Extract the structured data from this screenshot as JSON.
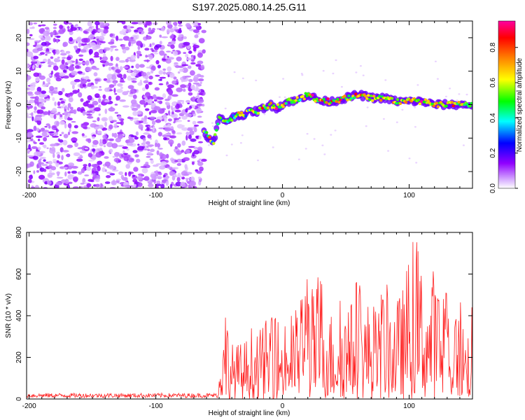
{
  "title": "S197.2025.080.14.25.G11",
  "chart_data": [
    {
      "type": "heatmap",
      "xlabel": "Height of straight line (km)",
      "ylabel": "Frequency (Hz)",
      "xlim": [
        -202,
        150
      ],
      "ylim": [
        -25,
        25
      ],
      "xticks": [
        -200,
        -100,
        0,
        100
      ],
      "yticks": [
        -20,
        -10,
        0,
        10,
        20
      ],
      "colorbar": {
        "label": "Normalized spectral amplitude",
        "range": [
          0,
          0.95
        ],
        "ticks": [
          "0.0",
          "0.2",
          "0.4",
          "0.6",
          "0.8"
        ],
        "colors": [
          "#ffffff",
          "#b000ff",
          "#0000ff",
          "#00ffff",
          "#00ff00",
          "#ffff00",
          "#ff8000",
          "#ff0000",
          "#ff00a0"
        ]
      },
      "noise_region_x": [
        -202,
        -62
      ],
      "ridge": {
        "x": [
          -62,
          -58,
          -55,
          -50,
          -45,
          -40,
          -35,
          -30,
          -25,
          -20,
          -15,
          -10,
          -5,
          0,
          5,
          10,
          15,
          20,
          30,
          40,
          50,
          60,
          70,
          80,
          90,
          100,
          110,
          120,
          130,
          140,
          150
        ],
        "frequency": [
          -8,
          -10,
          -12,
          -4,
          -5,
          -4,
          -3,
          -3,
          -2,
          -2,
          -1,
          0,
          -1,
          0,
          1,
          1,
          2,
          3,
          1,
          1,
          2,
          3,
          2,
          2,
          1,
          1,
          1,
          0,
          0,
          0,
          0
        ]
      }
    },
    {
      "type": "line",
      "xlabel": "Height of straight line (km)",
      "ylabel": "SNR (10 * v/v)",
      "xlim": [
        -202,
        150
      ],
      "ylim": [
        0,
        800
      ],
      "xticks": [
        -200,
        -100,
        0,
        100
      ],
      "yticks": [
        0,
        200,
        400,
        600,
        800
      ],
      "color": "#ff2020",
      "baseline_noise": {
        "x": [
          -202,
          -50
        ],
        "level": 20
      },
      "envelope": {
        "x": [
          -50,
          -45,
          -40,
          -35,
          -30,
          -25,
          -20,
          -15,
          -10,
          -5,
          0,
          5,
          10,
          15,
          20,
          25,
          30,
          35,
          40,
          45,
          50,
          55,
          60,
          65,
          70,
          75,
          80,
          85,
          90,
          95,
          100,
          105,
          110,
          115,
          120,
          125,
          130,
          135,
          140,
          145,
          150
        ],
        "value": [
          200,
          470,
          270,
          270,
          280,
          360,
          300,
          380,
          380,
          430,
          330,
          400,
          430,
          520,
          670,
          500,
          650,
          450,
          420,
          500,
          450,
          480,
          660,
          450,
          500,
          420,
          600,
          500,
          480,
          540,
          700,
          800,
          650,
          540,
          660,
          460,
          540,
          380,
          530,
          300,
          520
        ]
      }
    }
  ]
}
